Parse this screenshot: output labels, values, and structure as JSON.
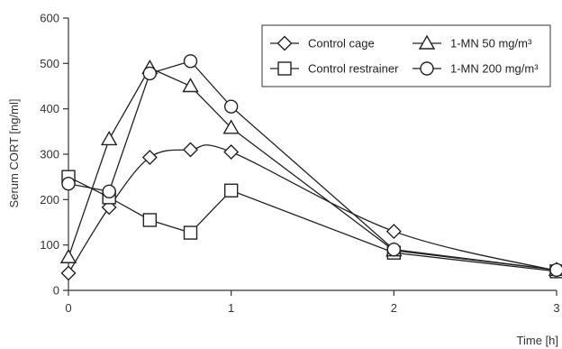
{
  "chart_data": {
    "type": "line",
    "xlabel": "Time [h]",
    "ylabel": "Serum CORT [ng/ml]",
    "xlim": [
      0,
      3
    ],
    "ylim": [
      0,
      600
    ],
    "x_ticks": [
      0,
      1,
      2,
      3
    ],
    "y_ticks": [
      0,
      100,
      200,
      300,
      400,
      500,
      600
    ],
    "grid": false,
    "legend_position": "top-right",
    "series": [
      {
        "name": "Control cage",
        "marker": "diamond",
        "smooth": true,
        "x": [
          0,
          0.25,
          0.5,
          0.75,
          1,
          2,
          3
        ],
        "y": [
          38,
          183,
          293,
          310,
          305,
          130,
          43
        ]
      },
      {
        "name": "Control restrainer",
        "marker": "square",
        "smooth": false,
        "x": [
          0,
          0.25,
          0.5,
          0.75,
          1,
          2,
          3
        ],
        "y": [
          250,
          205,
          155,
          127,
          220,
          83,
          42
        ]
      },
      {
        "name": "1-MN 50 mg/m³",
        "marker": "triangle",
        "smooth": false,
        "x": [
          0,
          0.25,
          0.5,
          0.75,
          1,
          2,
          3
        ],
        "y": [
          73,
          333,
          490,
          450,
          358,
          88,
          45
        ]
      },
      {
        "name": "1-MN 200 mg/m³",
        "marker": "circle",
        "smooth": false,
        "x": [
          0,
          0.25,
          0.5,
          0.75,
          1,
          2,
          3
        ],
        "y": [
          235,
          218,
          478,
          505,
          405,
          90,
          45
        ]
      }
    ]
  }
}
